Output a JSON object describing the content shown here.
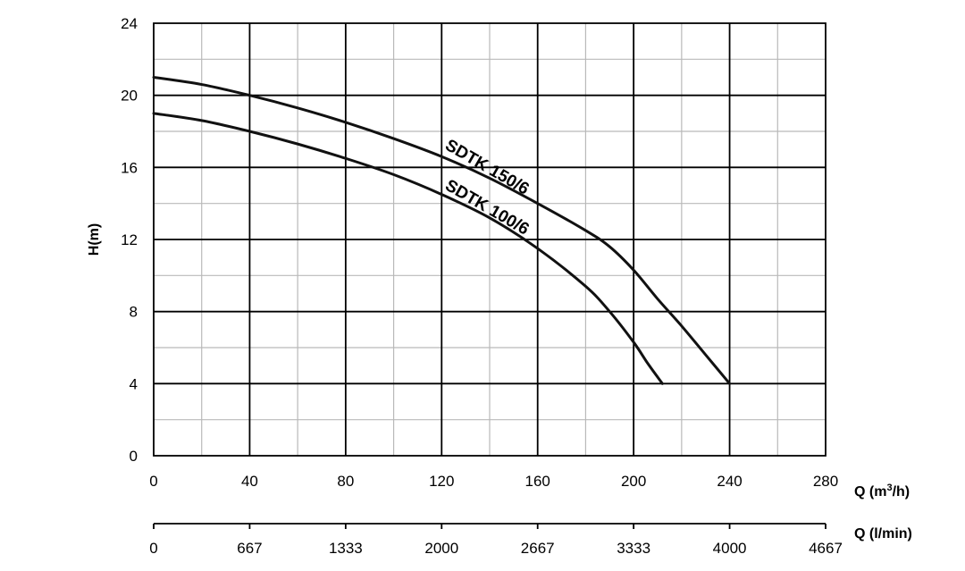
{
  "chart_data": {
    "type": "line",
    "ylabel": "H(m)",
    "xlabel": "Q (m³/h)",
    "x2label": "Q (l/min)",
    "xlim": [
      0,
      280
    ],
    "ylim": [
      0,
      24
    ],
    "x_ticks": [
      "0",
      "40",
      "80",
      "120",
      "160",
      "200",
      "240",
      "280"
    ],
    "y_ticks": [
      "0",
      "4",
      "8",
      "12",
      "16",
      "20",
      "24"
    ],
    "x2_ticks": [
      "0",
      "667",
      "1333",
      "2000",
      "2667",
      "3333",
      "4000",
      "4667"
    ],
    "grid": true,
    "series": [
      {
        "name": "SDTK 150/6",
        "x": [
          0,
          20,
          40,
          60,
          80,
          100,
          120,
          140,
          160,
          180,
          190,
          200,
          210,
          220,
          230,
          240
        ],
        "y": [
          21,
          20.6,
          20.0,
          19.3,
          18.5,
          17.6,
          16.6,
          15.4,
          14.0,
          12.5,
          11.6,
          10.3,
          8.7,
          7.2,
          5.6,
          4.0
        ]
      },
      {
        "name": "SDTK 100/6",
        "x": [
          0,
          20,
          40,
          60,
          80,
          100,
          120,
          140,
          160,
          180,
          190,
          200,
          206,
          212
        ],
        "y": [
          19,
          18.6,
          18.0,
          17.3,
          16.5,
          15.6,
          14.5,
          13.2,
          11.5,
          9.4,
          8.0,
          6.3,
          5.1,
          4.0
        ]
      }
    ]
  }
}
